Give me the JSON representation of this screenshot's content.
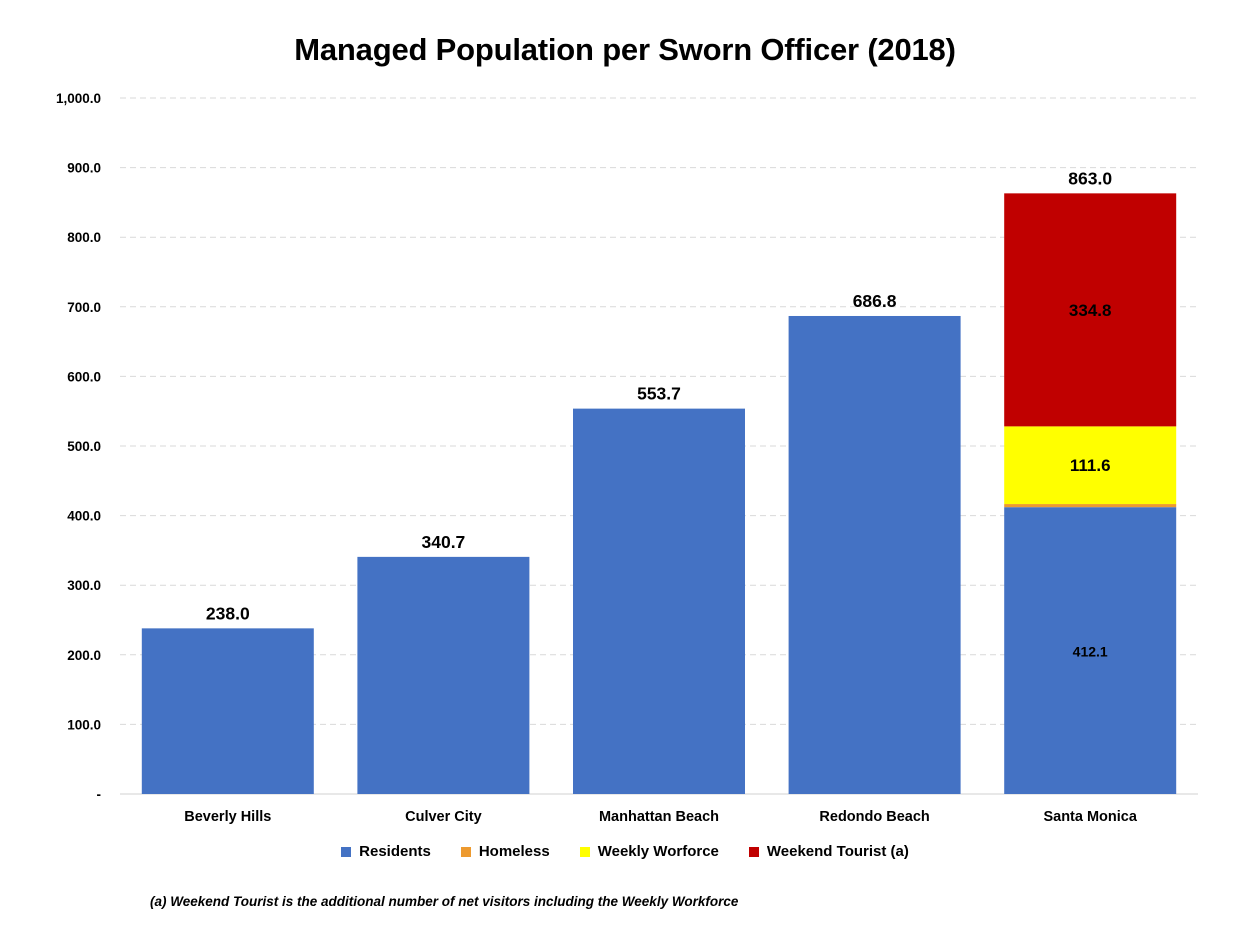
{
  "chart_data": {
    "type": "bar",
    "stacked": true,
    "title": "Managed Population per Sworn Officer (2018)",
    "categories": [
      "Beverly Hills",
      "Culver City",
      "Manhattan Beach",
      "Redondo Beach",
      "Santa Monica"
    ],
    "series": [
      {
        "name": "Residents",
        "color": "#4472C4",
        "values": [
          238.0,
          340.7,
          553.7,
          686.8,
          412.1
        ]
      },
      {
        "name": "Homeless",
        "color": "#ED9A2F",
        "values": [
          0,
          0,
          0,
          0,
          4.5
        ]
      },
      {
        "name": "Weekly Worforce",
        "color": "#FFFF00",
        "values": [
          0,
          0,
          0,
          0,
          111.6
        ]
      },
      {
        "name": "Weekend Tourist (a)",
        "color": "#C00000",
        "values": [
          0,
          0,
          0,
          0,
          334.8
        ]
      }
    ],
    "totals": [
      238.0,
      340.7,
      553.7,
      686.8,
      863.0
    ],
    "total_labels": [
      "238.0",
      "340.7",
      "553.7",
      "686.8",
      "863.0"
    ],
    "segment_labels": [
      {
        "category": "Santa Monica",
        "series": "Residents",
        "text": "412.1"
      },
      {
        "category": "Santa Monica",
        "series": "Weekly Worforce",
        "text": "111.6"
      },
      {
        "category": "Santa Monica",
        "series": "Weekend Tourist (a)",
        "text": "334.8"
      }
    ],
    "ylim": [
      0,
      1000
    ],
    "y_ticks": [
      0,
      100,
      200,
      300,
      400,
      500,
      600,
      700,
      800,
      900,
      1000
    ],
    "y_tick_labels": [
      "-",
      "100.0",
      "200.0",
      "300.0",
      "400.0",
      "500.0",
      "600.0",
      "700.0",
      "800.0",
      "900.0",
      "1,000.0"
    ],
    "grid": true,
    "legend_position": "bottom",
    "footnote": "(a) Weekend Tourist is the additional number of net visitors including the Weekly Workforce"
  }
}
